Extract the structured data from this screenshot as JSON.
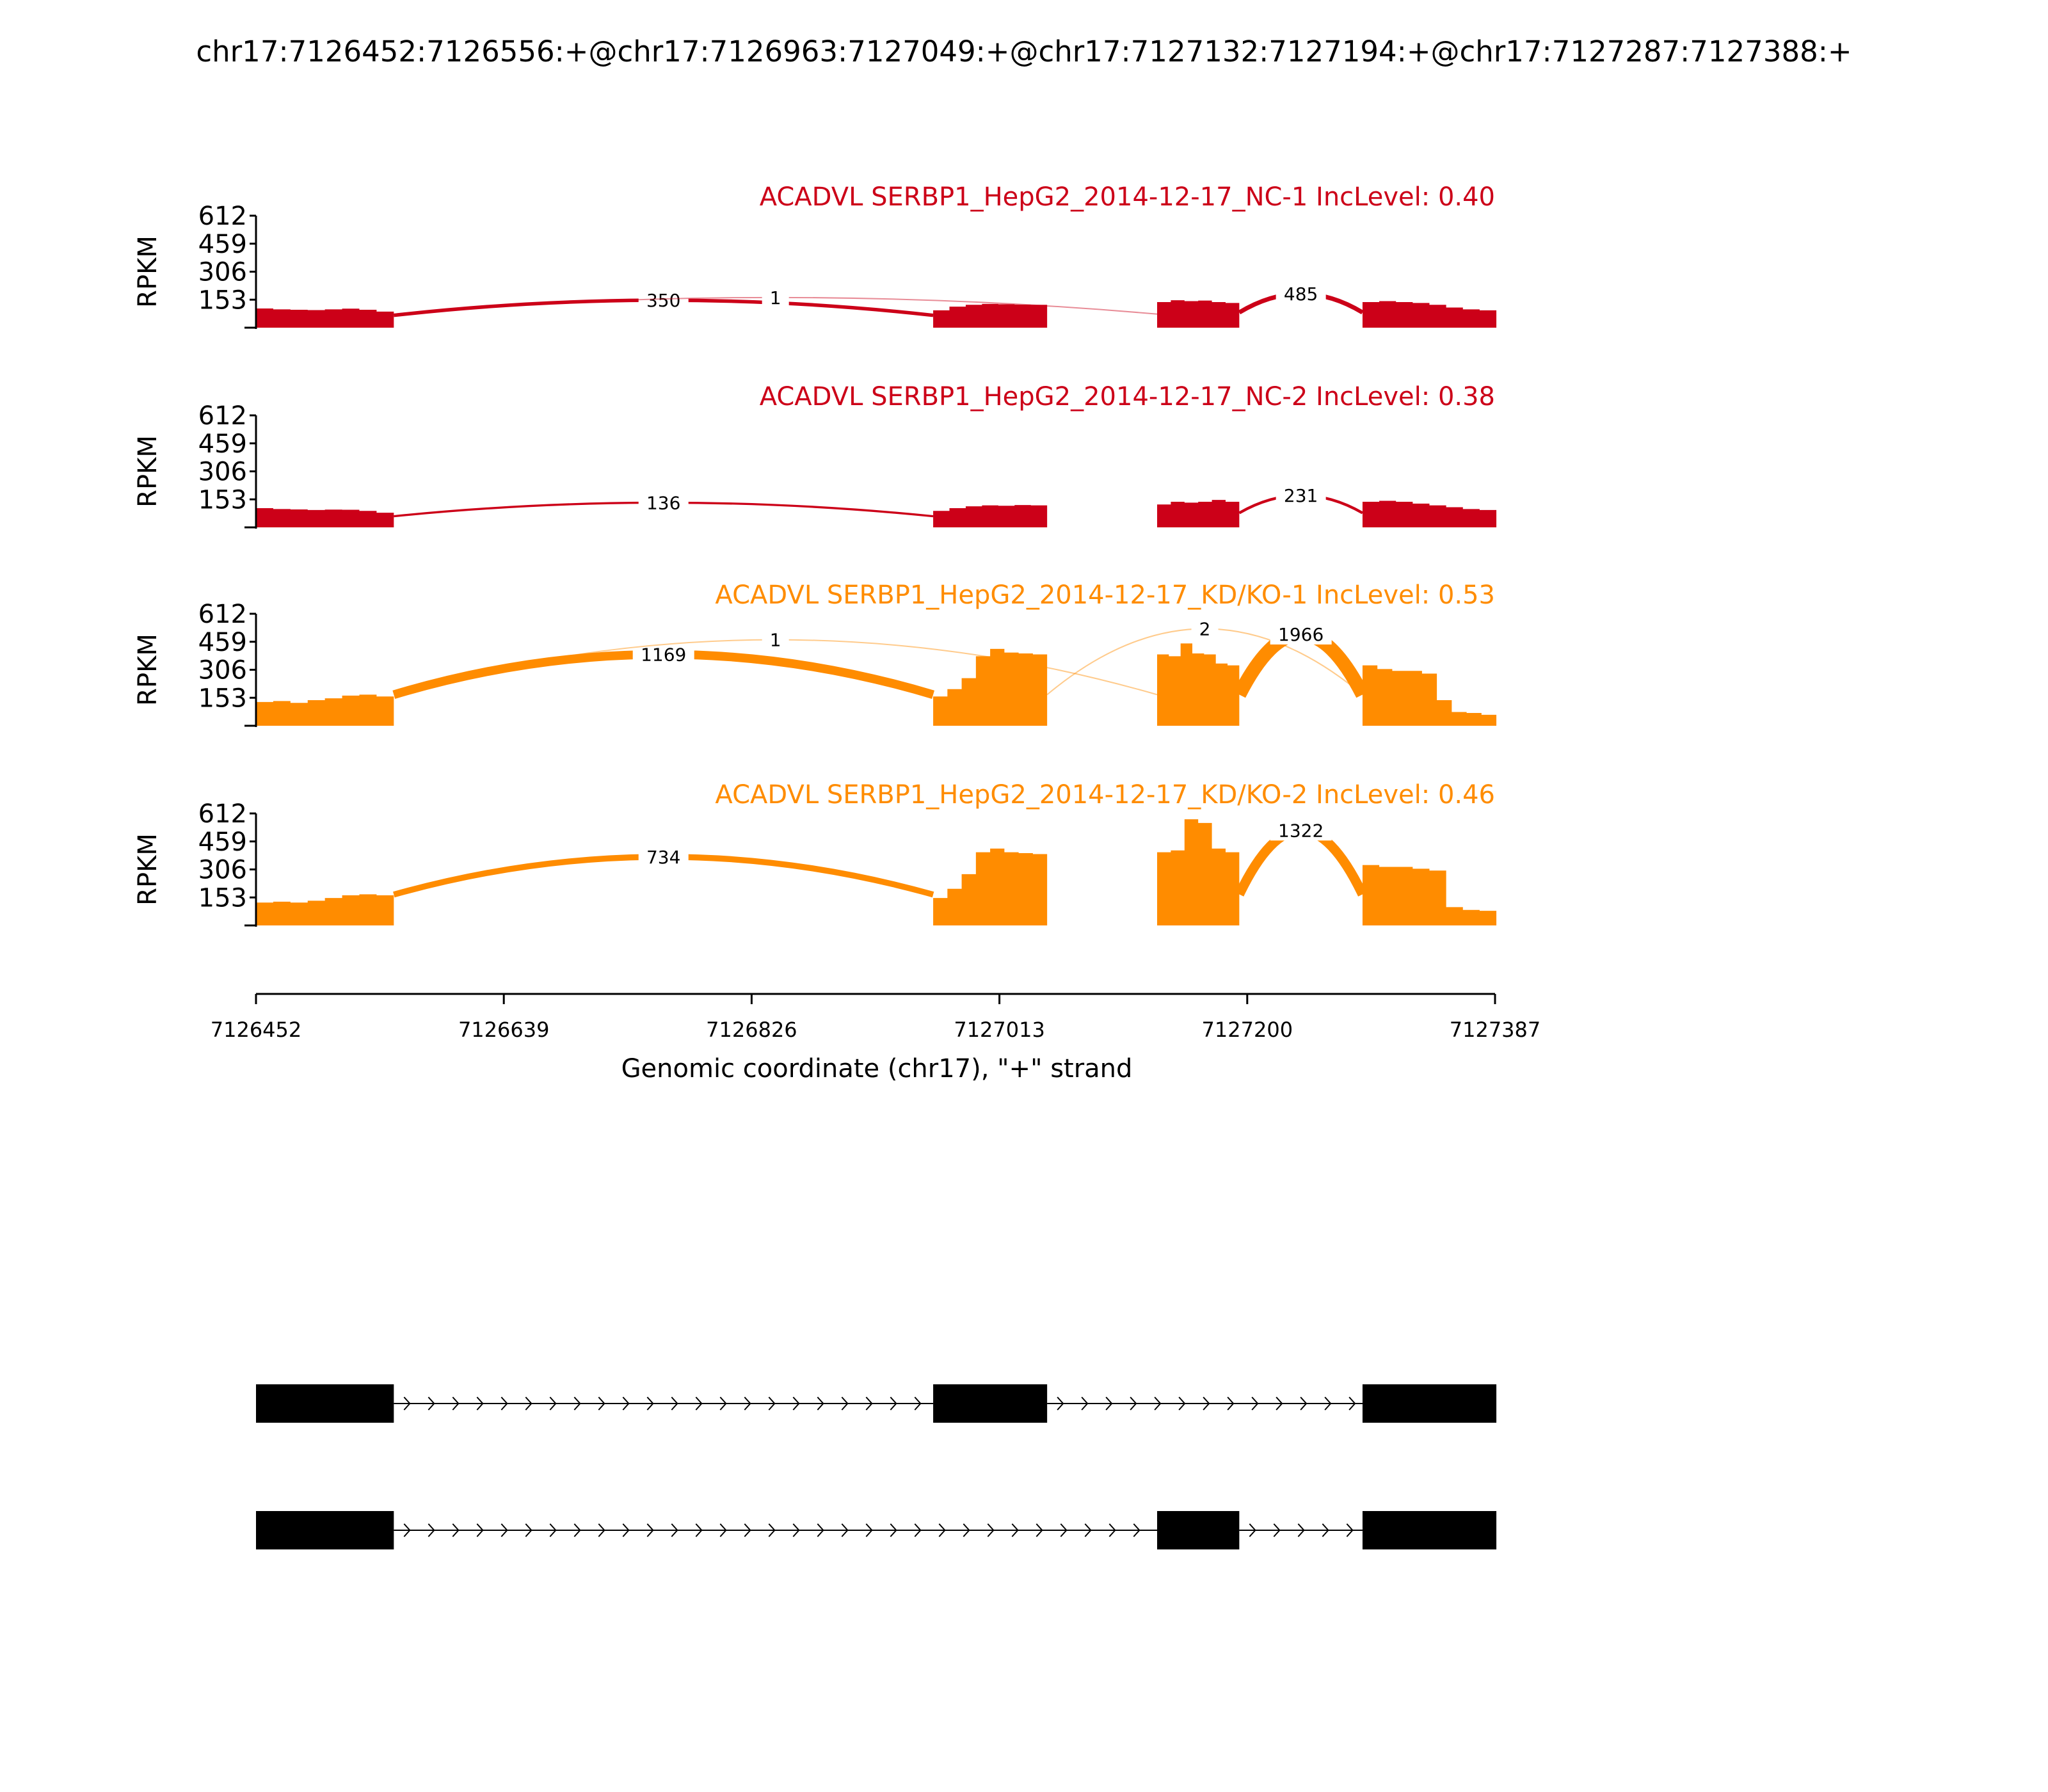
{
  "chart_data": {
    "type": "area",
    "title": "chr17:7126452:7126556:+@chr17:7126963:7127049:+@chr17:7127132:7127194:+@chr17:7127287:7127388:+",
    "xlabel": "Genomic coordinate (chr17), \"+\" strand",
    "ylabel": "RPKM",
    "xlim": [
      7126452,
      7127387
    ],
    "ylim": [
      0,
      612
    ],
    "yticks": [
      "153",
      "306",
      "459",
      "612"
    ],
    "xticks": [
      "7126452",
      "7126639",
      "7126826",
      "7127013",
      "7127200",
      "7127387"
    ],
    "exons": [
      [
        7126452,
        7126556
      ],
      [
        7126963,
        7127049
      ],
      [
        7127132,
        7127194
      ],
      [
        7127287,
        7127388
      ]
    ],
    "series": [
      {
        "name": "ACADVL SERBP1_HepG2_2014-12-17_NC-1 IncLevel: 0.40",
        "color": "#cc0018",
        "coverage": [
          [
            7126452,
            7126556,
            [
              105,
              100,
              98,
              96,
              100,
              104,
              98,
              88
            ]
          ],
          [
            7126963,
            7127049,
            [
              95,
              115,
              125,
              130,
              128,
              126,
              125
            ]
          ],
          [
            7127132,
            7127194,
            [
              140,
              150,
              145,
              148,
              140,
              135
            ]
          ],
          [
            7127287,
            7127388,
            [
              140,
              145,
              140,
              135,
              125,
              110,
              100,
              95
            ]
          ]
        ],
        "junctions": [
          {
            "start": 7126556,
            "end": 7126963,
            "count": 350,
            "peak": 150
          },
          {
            "start": 7126556,
            "end": 7127132,
            "count": 1,
            "peak": 165
          },
          {
            "start": 7127194,
            "end": 7127287,
            "count": 485,
            "peak": 185
          }
        ]
      },
      {
        "name": "ACADVL SERBP1_HepG2_2014-12-17_NC-2 IncLevel: 0.38",
        "color": "#cc0018",
        "coverage": [
          [
            7126452,
            7126556,
            [
              105,
              100,
              98,
              95,
              97,
              96,
              90,
              80
            ]
          ],
          [
            7126963,
            7127049,
            [
              90,
              105,
              115,
              120,
              118,
              122,
              120
            ]
          ],
          [
            7127132,
            7127194,
            [
              125,
              140,
              135,
              140,
              150,
              140
            ]
          ],
          [
            7127287,
            7127388,
            [
              140,
              145,
              140,
              130,
              120,
              110,
              100,
              95
            ]
          ]
        ],
        "junctions": [
          {
            "start": 7126556,
            "end": 7126963,
            "count": 136,
            "peak": 135
          },
          {
            "start": 7127194,
            "end": 7127287,
            "count": 231,
            "peak": 175
          }
        ]
      },
      {
        "name": "ACADVL SERBP1_HepG2_2014-12-17_KD/KO-1 IncLevel: 0.53",
        "color": "#ff8c00",
        "coverage": [
          [
            7126452,
            7126556,
            [
              130,
              135,
              125,
              140,
              150,
              165,
              170,
              160
            ]
          ],
          [
            7126963,
            7127049,
            [
              160,
              200,
              260,
              380,
              420,
              400,
              395,
              390
            ]
          ],
          [
            7127132,
            7127194,
            [
              390,
              380,
              450,
              395,
              390,
              340,
              330
            ]
          ],
          [
            7127287,
            7127388,
            [
              330,
              310,
              300,
              300,
              285,
              140,
              75,
              70,
              60
            ]
          ]
        ],
        "junctions": [
          {
            "start": 7126556,
            "end": 7126963,
            "count": 1169,
            "peak": 390
          },
          {
            "start": 7126556,
            "end": 7127132,
            "count": 1,
            "peak": 470
          },
          {
            "start": 7127049,
            "end": 7127287,
            "count": 2,
            "peak": 530
          },
          {
            "start": 7127194,
            "end": 7127287,
            "count": 1966,
            "peak": 500
          }
        ]
      },
      {
        "name": "ACADVL SERBP1_HepG2_2014-12-17_KD/KO-2 IncLevel: 0.46",
        "color": "#ff8c00",
        "coverage": [
          [
            7126452,
            7126556,
            [
              125,
              130,
              125,
              135,
              150,
              165,
              170,
              165
            ]
          ],
          [
            7126963,
            7127049,
            [
              150,
              200,
              280,
              400,
              420,
              400,
              395,
              390
            ]
          ],
          [
            7127132,
            7127194,
            [
              400,
              410,
              580,
              560,
              420,
              400
            ]
          ],
          [
            7127287,
            7127388,
            [
              330,
              320,
              320,
              310,
              300,
              100,
              85,
              80
            ]
          ]
        ],
        "junctions": [
          {
            "start": 7126556,
            "end": 7126963,
            "count": 734,
            "peak": 375
          },
          {
            "start": 7127194,
            "end": 7127287,
            "count": 1322,
            "peak": 520
          }
        ]
      }
    ],
    "transcripts": [
      {
        "exons": [
          [
            7126452,
            7126556
          ],
          [
            7126963,
            7127049
          ],
          [
            7127287,
            7127388
          ]
        ]
      },
      {
        "exons": [
          [
            7126452,
            7126556
          ],
          [
            7127132,
            7127194
          ],
          [
            7127287,
            7127388
          ]
        ]
      }
    ]
  }
}
